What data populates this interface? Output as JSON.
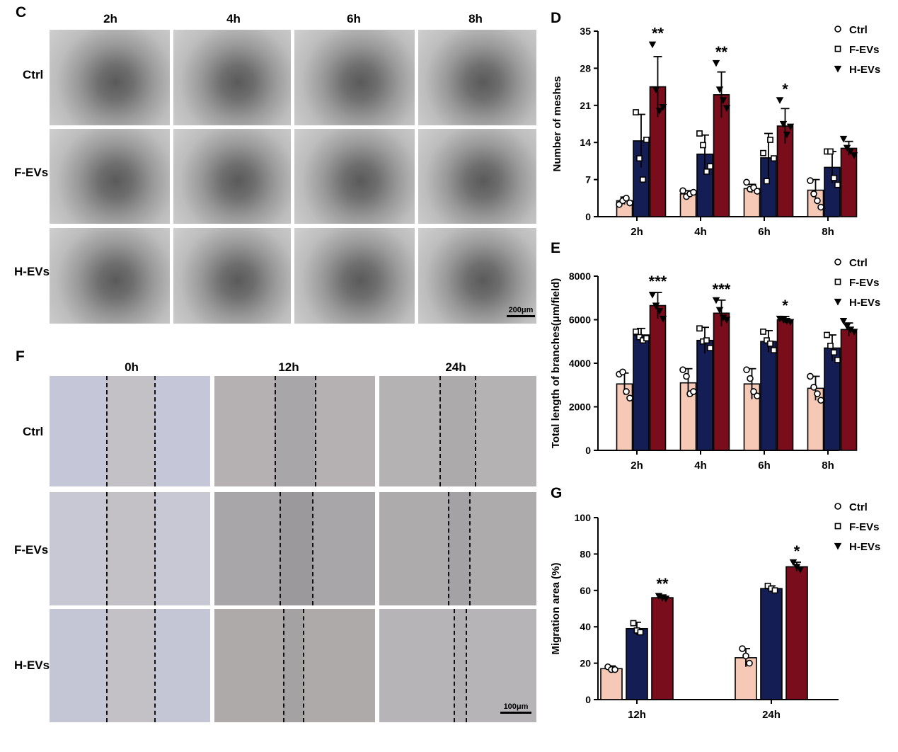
{
  "panel_letters": {
    "c": "C",
    "d": "D",
    "e": "E",
    "f": "F",
    "g": "G"
  },
  "panel_c": {
    "columns": [
      "2h",
      "4h",
      "6h",
      "8h"
    ],
    "rows": [
      "Ctrl",
      "F-EVs",
      "H-EVs"
    ],
    "scale": "200μm"
  },
  "panel_f": {
    "columns": [
      "0h",
      "12h",
      "24h"
    ],
    "rows": [
      "Ctrl",
      "F-EVs",
      "H-EVs"
    ],
    "scale": "100μm"
  },
  "colors": {
    "ctrl": "#f5c9b6",
    "fevs": "#141d54",
    "hevs": "#7a0d1b"
  },
  "chart_data": [
    {
      "id": "D",
      "type": "bar",
      "categories": [
        "2h",
        "4h",
        "6h",
        "8h"
      ],
      "ylabel": "Number of meshes",
      "ylim": [
        0,
        35
      ],
      "yticks": [
        0,
        7,
        14,
        21,
        28,
        35
      ],
      "legend": [
        "Ctrl",
        "F-EVs",
        "H-EVs"
      ],
      "legend_position": "top-right",
      "series": [
        {
          "name": "Ctrl",
          "values": [
            3,
            4.3,
            5.3,
            5
          ],
          "sd": [
            0.7,
            0.6,
            0.8,
            2
          ],
          "points": [
            [
              2.3,
              3,
              3.5,
              2.6
            ],
            [
              4.9,
              3.8,
              4.3,
              4.6
            ],
            [
              6.5,
              5.2,
              5.5,
              4.8
            ],
            [
              6.8,
              4.3,
              3,
              1.8
            ]
          ]
        },
        {
          "name": "F-EVs",
          "values": [
            14.3,
            11.8,
            11.1,
            9.3
          ],
          "sd": [
            5,
            3.6,
            4.6,
            3
          ],
          "points": [
            [
              19.7,
              11,
              7,
              14.5
            ],
            [
              15.7,
              13.5,
              8.5,
              9.5
            ],
            [
              12,
              6.7,
              14.5,
              11
            ],
            [
              12.3,
              12.3,
              7.3,
              6
            ]
          ]
        },
        {
          "name": "H-EVs",
          "values": [
            24.5,
            23,
            17.1,
            12.9
          ],
          "sd": [
            5.7,
            4.3,
            3.3,
            1.3
          ],
          "points": [
            [
              32.5,
              24,
              20,
              20.7
            ],
            [
              29,
              24,
              22,
              20.5
            ],
            [
              22,
              17.5,
              15.5,
              17
            ],
            [
              14.7,
              13,
              12.4,
              11.6
            ]
          ]
        }
      ],
      "annotations": [
        {
          "category": "2h",
          "text": "**"
        },
        {
          "category": "4h",
          "text": "**"
        },
        {
          "category": "6h",
          "text": "*"
        }
      ]
    },
    {
      "id": "E",
      "type": "bar",
      "categories": [
        "2h",
        "4h",
        "6h",
        "8h"
      ],
      "ylabel": "Total length of branches(μm/field)",
      "ylim": [
        0,
        8000
      ],
      "yticks": [
        0,
        2000,
        4000,
        6000,
        8000
      ],
      "legend": [
        "Ctrl",
        "F-EVs",
        "H-EVs"
      ],
      "legend_position": "top-right",
      "series": [
        {
          "name": "Ctrl",
          "values": [
            3050,
            3100,
            3050,
            2850
          ],
          "sd": [
            500,
            650,
            700,
            550
          ],
          "points": [
            [
              3500,
              3600,
              2700,
              2400
            ],
            [
              3700,
              3400,
              2600,
              2700
            ],
            [
              3700,
              3300,
              2700,
              2500
            ],
            [
              3400,
              2900,
              2600,
              2300
            ]
          ]
        },
        {
          "name": "F-EVs",
          "values": [
            5300,
            5050,
            5000,
            4700
          ],
          "sd": [
            300,
            600,
            500,
            600
          ],
          "points": [
            [
              5450,
              5200,
              5050,
              5150
            ],
            [
              5600,
              5000,
              5050,
              4700
            ],
            [
              5450,
              5050,
              4900,
              4600
            ],
            [
              5300,
              4800,
              4500,
              4150
            ]
          ]
        },
        {
          "name": "H-EVs",
          "values": [
            6650,
            6300,
            6000,
            5550
          ],
          "sd": [
            600,
            600,
            150,
            300
          ],
          "points": [
            [
              7150,
              6650,
              6400,
              6050
            ],
            [
              6900,
              6450,
              6100,
              6000
            ],
            [
              6050,
              6000,
              5950,
              5900
            ],
            [
              5950,
              5700,
              5550,
              5450
            ]
          ]
        }
      ],
      "annotations": [
        {
          "category": "2h",
          "text": "***"
        },
        {
          "category": "4h",
          "text": "***"
        },
        {
          "category": "6h",
          "text": "*"
        }
      ]
    },
    {
      "id": "G",
      "type": "bar",
      "categories": [
        "12h",
        "24h"
      ],
      "ylabel": "Migration area (%)",
      "ylim": [
        0,
        100
      ],
      "yticks": [
        0,
        20,
        40,
        60,
        80,
        100
      ],
      "legend": [
        "Ctrl",
        "F-EVs",
        "H-EVs"
      ],
      "legend_position": "top-right",
      "series": [
        {
          "name": "Ctrl",
          "values": [
            17,
            23
          ],
          "sd": [
            1.5,
            5
          ],
          "points": [
            [
              18,
              16.5,
              16.5
            ],
            [
              28,
              24,
              20
            ]
          ]
        },
        {
          "name": "F-EVs",
          "values": [
            39,
            61
          ],
          "sd": [
            3.5,
            1.5
          ],
          "points": [
            [
              42,
              38,
              37
            ],
            [
              62.5,
              61,
              60
            ]
          ]
        },
        {
          "name": "H-EVs",
          "values": [
            56,
            73
          ],
          "sd": [
            1.5,
            2.5
          ],
          "points": [
            [
              57,
              56,
              55.5
            ],
            [
              75.5,
              73,
              71.5
            ]
          ]
        }
      ],
      "annotations": [
        {
          "category": "12h",
          "text": "**"
        },
        {
          "category": "24h",
          "text": "*"
        }
      ]
    }
  ]
}
